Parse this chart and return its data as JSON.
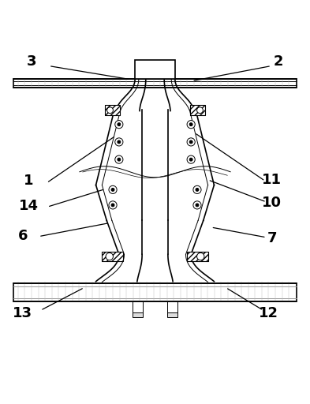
{
  "background_color": "#ffffff",
  "line_color": "#000000",
  "label_color": "#000000",
  "figsize": [
    3.93,
    5.12
  ],
  "dpi": 100
}
